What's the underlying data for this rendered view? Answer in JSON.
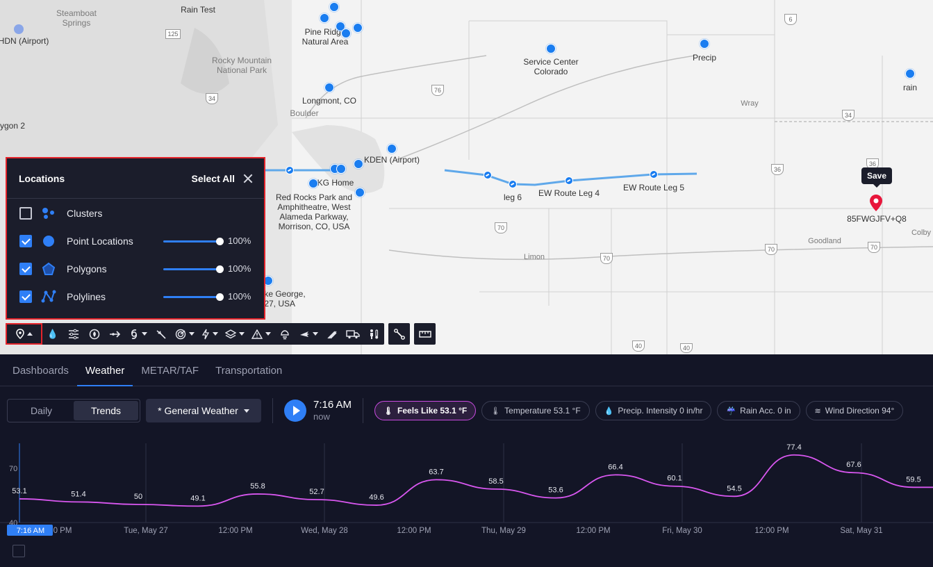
{
  "map": {
    "labels": [
      {
        "text": "Steamboat\nSprings",
        "tone": "gray"
      },
      {
        "text": "HDN (Airport)",
        "tone": "dark"
      },
      {
        "text": "Rain Test",
        "tone": "dark"
      },
      {
        "text": "Pine Ridge\nNatural Area",
        "tone": "dark"
      },
      {
        "text": "Rocky Mountain\nNational Park",
        "tone": "gray"
      },
      {
        "text": "Longmont, CO",
        "tone": "dark"
      },
      {
        "text": "Boulder",
        "tone": "gray"
      },
      {
        "text": "ygon 2",
        "tone": "dark"
      },
      {
        "text": "Service Center\nColorado",
        "tone": "dark"
      },
      {
        "text": "Precip",
        "tone": "dark"
      },
      {
        "text": "rain",
        "tone": "dark"
      },
      {
        "text": "Wray",
        "tone": "gray"
      },
      {
        "text": "KDEN (Airport)",
        "tone": "dark"
      },
      {
        "text": "KG Home",
        "tone": "dark"
      },
      {
        "text": "Red Rocks Park and\nAmphitheatre, West\nAlameda Parkway,\nMorrison, CO, USA",
        "tone": "dark"
      },
      {
        "text": "leg 6",
        "tone": "dark"
      },
      {
        "text": "EW Route Leg 4",
        "tone": "dark"
      },
      {
        "text": "EW Route Leg 5",
        "tone": "dark"
      },
      {
        "text": "85FWGJFV+Q8",
        "tone": "dark"
      },
      {
        "text": "Goodland",
        "tone": "gray"
      },
      {
        "text": "Colby",
        "tone": "gray"
      },
      {
        "text": "Limon",
        "tone": "gray"
      },
      {
        "text": "ke George,\n27, USA",
        "tone": "dark"
      }
    ],
    "shields": [
      "125",
      "34",
      "76",
      "6",
      "34",
      "36",
      "36",
      "70",
      "70",
      "70",
      "70",
      "40",
      "40"
    ],
    "save_tooltip": "Save"
  },
  "locations_panel": {
    "title": "Locations",
    "select_all": "Select All",
    "rows": [
      {
        "label": "Clusters",
        "checked": false,
        "icon": "clusters-icon"
      },
      {
        "label": "Point Locations",
        "checked": true,
        "icon": "point-icon",
        "opacity": "100%"
      },
      {
        "label": "Polygons",
        "checked": true,
        "icon": "polygon-icon",
        "opacity": "100%"
      },
      {
        "label": "Polylines",
        "checked": true,
        "icon": "polyline-icon",
        "opacity": "100%"
      }
    ]
  },
  "toolbar": {
    "buttons": [
      "location-pin-icon",
      "precip-icon",
      "wind-lines-icon",
      "fire-icon",
      "route-arrow-icon",
      "hurricane-icon",
      "storm-path-icon",
      "radar-icon",
      "lightning-icon",
      "layers-icon",
      "warning-icon",
      "winter-icon",
      "aviation-icon",
      "marine-icon",
      "truck-icon",
      "person-temp-icon",
      "polyline-tool-icon",
      "ruler-icon"
    ]
  },
  "bottom": {
    "tabs": [
      "Dashboards",
      "Weather",
      "METAR/TAF",
      "Transportation"
    ],
    "active_tab": "Weather",
    "view_toggle": [
      "Daily",
      "Trends"
    ],
    "active_view": "Trends",
    "preset": "* General Weather",
    "time": "7:16 AM",
    "time_sub": "now",
    "chips": [
      {
        "label": "Feels Like 53.1 °F",
        "active": true
      },
      {
        "label": "Temperature 53.1 °F",
        "active": false
      },
      {
        "label": "Precip. Intensity 0 in/hr",
        "active": false
      },
      {
        "label": "Rain Acc. 0 in",
        "active": false
      },
      {
        "label": "Wind Direction 94°",
        "active": false
      }
    ]
  },
  "chart_data": {
    "type": "line",
    "series": [
      {
        "name": "Feels Like",
        "color": "#d957f0"
      }
    ],
    "y_ticks": [
      "70",
      "40"
    ],
    "ylim": [
      40,
      80
    ],
    "point_labels": [
      "53.1",
      "51.4",
      "50",
      "49.1",
      "55.8",
      "52.7",
      "49.6",
      "63.7",
      "58.5",
      "53.6",
      "66.4",
      "60.1",
      "54.5",
      "77.4",
      "67.6",
      "59.5"
    ],
    "point_values": [
      53.1,
      51.4,
      50,
      49.1,
      55.8,
      52.7,
      49.6,
      63.7,
      58.5,
      53.6,
      66.4,
      60.1,
      54.5,
      77.4,
      67.6,
      59.5
    ],
    "x_ticks": [
      "7:16 AM",
      "0 PM",
      "Tue, May 27",
      "12:00 PM",
      "Wed, May 28",
      "12:00 PM",
      "Thu, May 29",
      "12:00 PM",
      "Fri, May 30",
      "12:00 PM",
      "Sat, May 31"
    ],
    "current_time_label": "7:16 AM"
  }
}
